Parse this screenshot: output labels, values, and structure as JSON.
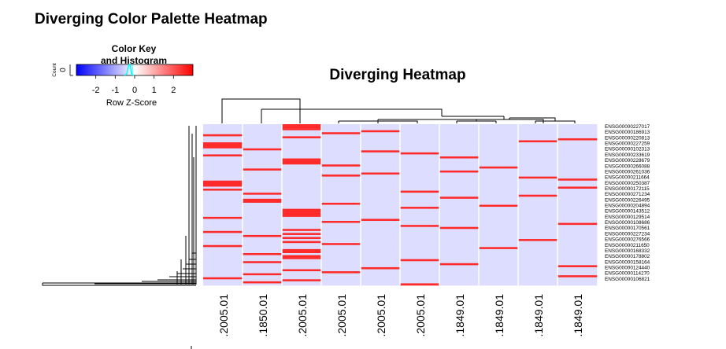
{
  "page": {
    "title": "Diverging Color Palette Heatmap"
  },
  "chart_data": {
    "type": "heatmap",
    "title": "Diverging Heatmap",
    "color_key": {
      "title_line1": "Color Key",
      "title_line2": "and Histogram",
      "ylabel": "Count",
      "y_tick": "0",
      "xlabel": "Row Z-Score",
      "ticks": [
        "-2",
        "-1",
        "0",
        "1",
        "2"
      ],
      "range": [
        -3,
        3
      ],
      "low_color": "#0000ff",
      "mid_color": "#ffffff",
      "high_color": "#ff0000",
      "histogram_color": "#00ffff"
    },
    "columns": [
      ".2005.01",
      ".1850.01",
      ".2005.01",
      ".2005.01",
      ".2005.01",
      ".2005.01",
      ".1849.01",
      ".1849.01",
      ".1849.01",
      ".1849.01"
    ],
    "row_labels": [
      "ENSG00000227017",
      "ENSG00000186913",
      "ENSG00000220813",
      "ENSG00000227259",
      "ENSG00000102313",
      "ENSG00000233619",
      "ENSG00000228679",
      "ENSG00000266088",
      "ENSG00000261036",
      "ENSG00000211664",
      "ENSG00000250387",
      "ENSG00000172115",
      "ENSG00000271234",
      "ENSG00000226495",
      "ENSG00000204894",
      "ENSG00000143512",
      "ENSG00000129514",
      "ENSG00000108686",
      "ENSG00000170561",
      "ENSG00000227234",
      "ENSG00000276566",
      "ENSG00000211650",
      "ENSG00000168332",
      "ENSG00000178802",
      "ENSG00000158164",
      "ENSG00000124440",
      "ENSG00000114270",
      "ENSG00000106821"
    ],
    "n_rows": 80,
    "high_cells": [
      [
        0,
        2
      ],
      [
        1,
        2
      ],
      [
        2,
        2
      ],
      [
        3,
        4
      ],
      [
        4,
        3
      ],
      [
        5,
        0
      ],
      [
        6,
        2
      ],
      [
        7,
        9
      ],
      [
        8,
        8
      ],
      [
        9,
        0
      ],
      [
        10,
        0
      ],
      [
        11,
        0
      ],
      [
        12,
        1
      ],
      [
        13,
        4
      ],
      [
        14,
        5
      ],
      [
        15,
        0
      ],
      [
        16,
        6
      ],
      [
        17,
        2
      ],
      [
        18,
        2
      ],
      [
        19,
        2
      ],
      [
        20,
        3
      ],
      [
        21,
        7
      ],
      [
        22,
        1
      ],
      [
        23,
        6
      ],
      [
        24,
        4
      ],
      [
        25,
        3
      ],
      [
        26,
        8
      ],
      [
        27,
        9
      ],
      [
        28,
        0
      ],
      [
        29,
        0
      ],
      [
        30,
        0
      ],
      [
        31,
        9
      ],
      [
        32,
        0
      ],
      [
        33,
        5
      ],
      [
        34,
        1
      ],
      [
        35,
        8
      ],
      [
        36,
        6
      ],
      [
        37,
        1
      ],
      [
        38,
        1
      ],
      [
        39,
        3
      ],
      [
        40,
        7
      ],
      [
        41,
        5
      ],
      [
        42,
        2
      ],
      [
        43,
        2
      ],
      [
        44,
        2
      ],
      [
        45,
        2
      ],
      [
        46,
        0
      ],
      [
        47,
        4
      ],
      [
        48,
        3
      ],
      [
        49,
        9
      ],
      [
        50,
        5
      ],
      [
        51,
        6
      ],
      [
        52,
        2
      ],
      [
        53,
        0
      ],
      [
        54,
        2
      ],
      [
        55,
        1
      ],
      [
        56,
        2
      ],
      [
        57,
        8
      ],
      [
        58,
        2
      ],
      [
        59,
        3
      ],
      [
        60,
        0
      ],
      [
        61,
        7
      ],
      [
        62,
        2
      ],
      [
        63,
        2
      ],
      [
        64,
        1
      ],
      [
        65,
        2
      ],
      [
        66,
        2
      ],
      [
        67,
        5
      ],
      [
        68,
        1
      ],
      [
        69,
        6
      ],
      [
        70,
        9
      ],
      [
        71,
        4
      ],
      [
        72,
        2
      ],
      [
        73,
        3
      ],
      [
        74,
        1
      ],
      [
        75,
        9
      ],
      [
        76,
        0
      ],
      [
        77,
        2
      ],
      [
        78,
        1
      ],
      [
        79,
        5
      ]
    ],
    "high_value": 2.5,
    "base_value": -0.4
  }
}
